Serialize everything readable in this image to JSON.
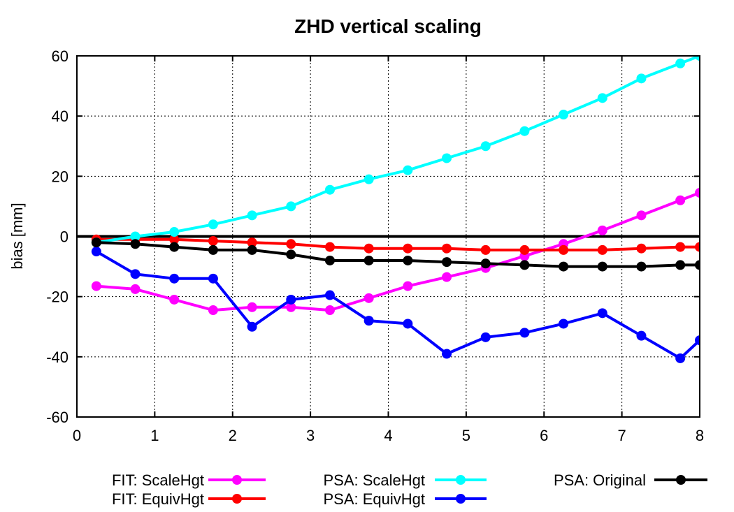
{
  "chart_data": {
    "type": "line",
    "title": "ZHD vertical scaling",
    "xlabel": "",
    "ylabel": "bias [mm]",
    "xlim": [
      0,
      8
    ],
    "ylim": [
      -60,
      60
    ],
    "xticks": [
      0,
      1,
      2,
      3,
      4,
      5,
      6,
      7,
      8
    ],
    "yticks": [
      -60,
      -40,
      -20,
      0,
      20,
      40,
      60
    ],
    "grid": true,
    "legend_position": "bottom",
    "series": [
      {
        "name": "FIT: ScaleHgt",
        "color": "#ff00ff",
        "x": [
          0.25,
          0.75,
          1.25,
          1.75,
          2.25,
          2.75,
          3.25,
          3.75,
          4.25,
          4.75,
          5.25,
          5.75,
          6.25,
          6.75,
          7.25,
          7.75,
          8.0
        ],
        "y": [
          -16.5,
          -17.5,
          -21.0,
          -24.5,
          -23.5,
          -23.5,
          -24.5,
          -20.5,
          -16.5,
          -13.5,
          -10.5,
          -6.5,
          -2.5,
          2.0,
          7.0,
          12.0,
          14.5
        ]
      },
      {
        "name": "FIT: EquivHgt",
        "color": "#ff0000",
        "x": [
          0.25,
          0.75,
          1.25,
          1.75,
          2.25,
          2.75,
          3.25,
          3.75,
          4.25,
          4.75,
          5.25,
          5.75,
          6.25,
          6.75,
          7.25,
          7.75,
          8.0
        ],
        "y": [
          -1.0,
          -1.0,
          -1.0,
          -1.5,
          -2.0,
          -2.5,
          -3.5,
          -4.0,
          -4.0,
          -4.0,
          -4.5,
          -4.5,
          -4.5,
          -4.5,
          -4.0,
          -3.5,
          -3.5
        ]
      },
      {
        "name": "PSA: ScaleHgt",
        "color": "#00ffff",
        "x": [
          0.25,
          0.75,
          1.25,
          1.75,
          2.25,
          2.75,
          3.25,
          3.75,
          4.25,
          4.75,
          5.25,
          5.75,
          6.25,
          6.75,
          7.25,
          7.75,
          8.0
        ],
        "y": [
          -2.0,
          0.0,
          1.5,
          4.0,
          7.0,
          10.0,
          15.5,
          19.0,
          22.0,
          26.0,
          30.0,
          35.0,
          40.5,
          46.0,
          52.5,
          57.5,
          60.0
        ]
      },
      {
        "name": "PSA: EquivHgt",
        "color": "#0000ff",
        "x": [
          0.25,
          0.75,
          1.25,
          1.75,
          2.25,
          2.75,
          3.25,
          3.75,
          4.25,
          4.75,
          5.25,
          5.75,
          6.25,
          6.75,
          7.25,
          7.75,
          8.0
        ],
        "y": [
          -5.0,
          -12.5,
          -14.0,
          -14.0,
          -30.0,
          -21.0,
          -19.5,
          -28.0,
          -29.0,
          -39.0,
          -33.5,
          -32.0,
          -29.0,
          -25.5,
          -33.0,
          -40.5,
          -34.5
        ]
      },
      {
        "name": "PSA: Original",
        "color": "#000000",
        "x": [
          0.25,
          0.75,
          1.25,
          1.75,
          2.25,
          2.75,
          3.25,
          3.75,
          4.25,
          4.75,
          5.25,
          5.75,
          6.25,
          6.75,
          7.25,
          7.75,
          8.0
        ],
        "y": [
          -2.0,
          -2.5,
          -3.5,
          -4.5,
          -4.5,
          -6.0,
          -8.0,
          -8.0,
          -8.0,
          -8.5,
          -9.0,
          -9.5,
          -10.0,
          -10.0,
          -10.0,
          -9.5,
          -9.5
        ]
      }
    ]
  }
}
